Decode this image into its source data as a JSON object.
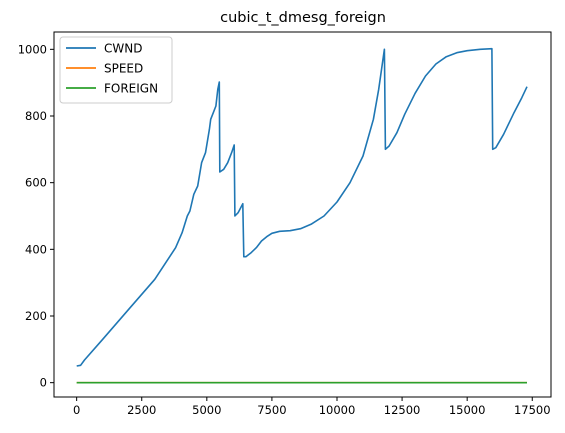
{
  "chart_data": {
    "type": "line",
    "title": "cubic_t_dmesg_foreign",
    "xlabel": "",
    "ylabel": "",
    "xlim": [
      -870,
      18220
    ],
    "ylim": [
      -43,
      1052
    ],
    "xticks": [
      0,
      2500,
      5000,
      7500,
      10000,
      12500,
      15000,
      17500
    ],
    "xtick_labels": [
      "0",
      "2500",
      "5000",
      "7500",
      "10000",
      "12500",
      "15000",
      "17500"
    ],
    "yticks": [
      0,
      200,
      400,
      600,
      800,
      1000
    ],
    "ytick_labels": [
      "0",
      "200",
      "400",
      "600",
      "800",
      "1000"
    ],
    "grid": false,
    "legend_position": "top-left",
    "series": [
      {
        "name": "CWND",
        "color": "#1f77b4",
        "points": [
          [
            0,
            50
          ],
          [
            150,
            52
          ],
          [
            300,
            68
          ],
          [
            1000,
            130
          ],
          [
            2000,
            220
          ],
          [
            3000,
            310
          ],
          [
            3800,
            405
          ],
          [
            4050,
            450
          ],
          [
            4250,
            500
          ],
          [
            4350,
            515
          ],
          [
            4500,
            565
          ],
          [
            4650,
            590
          ],
          [
            4800,
            660
          ],
          [
            4950,
            690
          ],
          [
            5100,
            760
          ],
          [
            5150,
            790
          ],
          [
            5250,
            810
          ],
          [
            5350,
            830
          ],
          [
            5420,
            880
          ],
          [
            5480,
            902
          ],
          [
            5500,
            632
          ],
          [
            5650,
            640
          ],
          [
            5800,
            660
          ],
          [
            5950,
            690
          ],
          [
            6050,
            713
          ],
          [
            6080,
            500
          ],
          [
            6200,
            510
          ],
          [
            6300,
            525
          ],
          [
            6380,
            537
          ],
          [
            6420,
            378
          ],
          [
            6500,
            378
          ],
          [
            6700,
            390
          ],
          [
            6900,
            405
          ],
          [
            7100,
            425
          ],
          [
            7300,
            438
          ],
          [
            7500,
            448
          ],
          [
            7800,
            454
          ],
          [
            8200,
            456
          ],
          [
            8600,
            462
          ],
          [
            9000,
            475
          ],
          [
            9500,
            500
          ],
          [
            10000,
            542
          ],
          [
            10500,
            600
          ],
          [
            11000,
            680
          ],
          [
            11400,
            790
          ],
          [
            11600,
            880
          ],
          [
            11820,
            1000
          ],
          [
            11860,
            700
          ],
          [
            12000,
            710
          ],
          [
            12300,
            750
          ],
          [
            12600,
            805
          ],
          [
            13000,
            868
          ],
          [
            13400,
            920
          ],
          [
            13800,
            956
          ],
          [
            14200,
            978
          ],
          [
            14600,
            990
          ],
          [
            15000,
            996
          ],
          [
            15500,
            1000
          ],
          [
            15950,
            1002
          ],
          [
            15980,
            700
          ],
          [
            16100,
            705
          ],
          [
            16400,
            745
          ],
          [
            16800,
            810
          ],
          [
            17100,
            855
          ],
          [
            17300,
            888
          ]
        ]
      },
      {
        "name": "SPEED",
        "color": "#ff7f0e",
        "points": [
          [
            0,
            0
          ],
          [
            17300,
            0
          ]
        ]
      },
      {
        "name": "FOREIGN",
        "color": "#2ca02c",
        "points": [
          [
            0,
            0
          ],
          [
            17300,
            0
          ]
        ]
      }
    ]
  }
}
